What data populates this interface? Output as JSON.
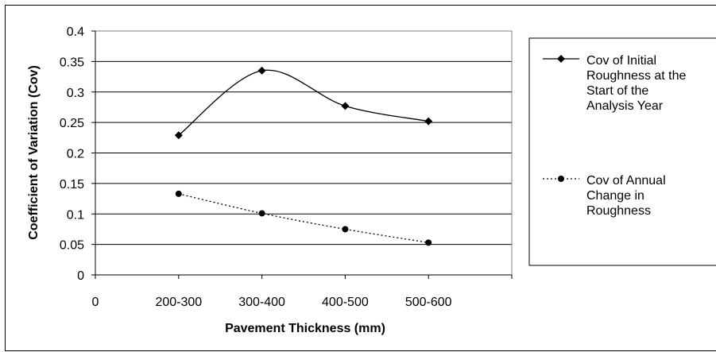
{
  "chart_data": {
    "type": "line",
    "categories": [
      "200-300",
      "300-400",
      "400-500",
      "500-600"
    ],
    "x_tick_labels": [
      "0",
      "200-300",
      "300-400",
      "400-500",
      "500-600"
    ],
    "y_tick_labels": [
      "0",
      "0.05",
      "0.1",
      "0.15",
      "0.2",
      "0.25",
      "0.3",
      "0.35",
      "0.4"
    ],
    "xlabel": "Pavement Thickness (mm)",
    "ylabel": "Coefficient of Variation (Cov)",
    "ylim": [
      0,
      0.4
    ],
    "grid": "horizontal",
    "legend_position": "right",
    "series": [
      {
        "name": "Cov of Initial Roughness at the Start of the Analysis Year",
        "legend_lines": [
          "Cov of Initial",
          "Roughness at the",
          "Start of the",
          "Analysis Year"
        ],
        "values": [
          0.229,
          0.335,
          0.277,
          0.252
        ],
        "marker": "diamond",
        "line_style": "solid",
        "smooth": true,
        "color": "#000000"
      },
      {
        "name": "Cov of Annual Change in Roughness",
        "legend_lines": [
          "Cov of Annual",
          "Change in",
          "Roughness"
        ],
        "values": [
          0.133,
          0.101,
          0.075,
          0.053
        ],
        "marker": "circle",
        "line_style": "dotted",
        "smooth": true,
        "color": "#000000"
      }
    ]
  }
}
